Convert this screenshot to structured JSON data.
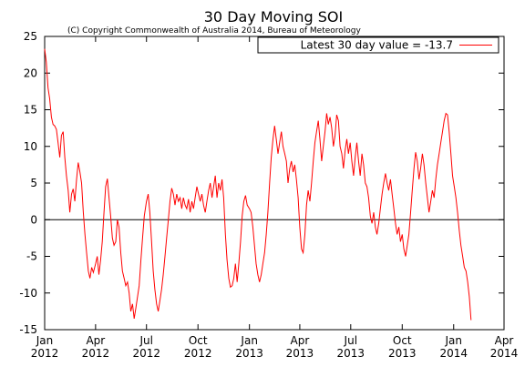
{
  "chart_data": {
    "type": "line",
    "title": "30 Day Moving SOI",
    "subtitle": "(C) Copyright Commonwealth of Australia 2014, Bureau of Meteorology",
    "xlabel": "",
    "ylabel": "",
    "ylim": [
      -15,
      25
    ],
    "yticks": [
      -15,
      -10,
      -5,
      0,
      5,
      10,
      15,
      20,
      25
    ],
    "xlim": [
      "2012-01-01",
      "2014-04-01"
    ],
    "xticks": [
      {
        "date": "2012-01-01",
        "month": "Jan",
        "year": "2012"
      },
      {
        "date": "2012-04-01",
        "month": "Apr",
        "year": "2012"
      },
      {
        "date": "2012-07-01",
        "month": "Jul",
        "year": "2012"
      },
      {
        "date": "2012-10-01",
        "month": "Oct",
        "year": "2012"
      },
      {
        "date": "2013-01-01",
        "month": "Jan",
        "year": "2013"
      },
      {
        "date": "2013-04-01",
        "month": "Apr",
        "year": "2013"
      },
      {
        "date": "2013-07-01",
        "month": "Jul",
        "year": "2013"
      },
      {
        "date": "2013-10-01",
        "month": "Oct",
        "year": "2013"
      },
      {
        "date": "2014-01-01",
        "month": "Jan",
        "year": "2014"
      },
      {
        "date": "2014-04-01",
        "month": "Apr",
        "year": "2014"
      }
    ],
    "zero_line": true,
    "grid": false,
    "legend": {
      "position": "top-right",
      "entry": "Latest 30 day value = -13.7"
    },
    "series": [
      {
        "color": "#ff0000",
        "points": [
          [
            "2012-01-01",
            23.3
          ],
          [
            "2012-01-04",
            21.5
          ],
          [
            "2012-01-07",
            18.0
          ],
          [
            "2012-01-10",
            16.5
          ],
          [
            "2012-01-13",
            14.0
          ],
          [
            "2012-01-16",
            13.0
          ],
          [
            "2012-01-19",
            12.8
          ],
          [
            "2012-01-22",
            12.3
          ],
          [
            "2012-01-25",
            10.5
          ],
          [
            "2012-01-28",
            8.5
          ],
          [
            "2012-01-31",
            11.5
          ],
          [
            "2012-02-03",
            12.0
          ],
          [
            "2012-02-06",
            8.5
          ],
          [
            "2012-02-09",
            6.0
          ],
          [
            "2012-02-12",
            4.0
          ],
          [
            "2012-02-15",
            1.0
          ],
          [
            "2012-02-18",
            3.5
          ],
          [
            "2012-02-21",
            4.2
          ],
          [
            "2012-02-24",
            2.5
          ],
          [
            "2012-02-27",
            5.5
          ],
          [
            "2012-03-01",
            7.8
          ],
          [
            "2012-03-04",
            6.5
          ],
          [
            "2012-03-07",
            5.0
          ],
          [
            "2012-03-10",
            1.0
          ],
          [
            "2012-03-13",
            -2.0
          ],
          [
            "2012-03-16",
            -4.5
          ],
          [
            "2012-03-19",
            -7.0
          ],
          [
            "2012-03-22",
            -8.0
          ],
          [
            "2012-03-25",
            -6.5
          ],
          [
            "2012-03-28",
            -7.2
          ],
          [
            "2012-04-01",
            -6.0
          ],
          [
            "2012-04-04",
            -5.0
          ],
          [
            "2012-04-07",
            -7.5
          ],
          [
            "2012-04-10",
            -5.5
          ],
          [
            "2012-04-13",
            -3.0
          ],
          [
            "2012-04-16",
            1.0
          ],
          [
            "2012-04-19",
            4.5
          ],
          [
            "2012-04-22",
            5.6
          ],
          [
            "2012-04-25",
            3.0
          ],
          [
            "2012-04-28",
            0.5
          ],
          [
            "2012-05-01",
            -2.5
          ],
          [
            "2012-05-04",
            -3.5
          ],
          [
            "2012-05-07",
            -3.0
          ],
          [
            "2012-05-10",
            0.0
          ],
          [
            "2012-05-13",
            -1.0
          ],
          [
            "2012-05-16",
            -4.5
          ],
          [
            "2012-05-19",
            -7.0
          ],
          [
            "2012-05-22",
            -8.0
          ],
          [
            "2012-05-25",
            -9.0
          ],
          [
            "2012-05-28",
            -8.5
          ],
          [
            "2012-05-31",
            -10.0
          ],
          [
            "2012-06-03",
            -12.5
          ],
          [
            "2012-06-06",
            -11.5
          ],
          [
            "2012-06-09",
            -13.5
          ],
          [
            "2012-06-12",
            -12.0
          ],
          [
            "2012-06-15",
            -10.5
          ],
          [
            "2012-06-18",
            -9.0
          ],
          [
            "2012-06-21",
            -5.5
          ],
          [
            "2012-06-24",
            -2.5
          ],
          [
            "2012-06-27",
            0.5
          ],
          [
            "2012-07-01",
            2.5
          ],
          [
            "2012-07-04",
            3.5
          ],
          [
            "2012-07-07",
            1.0
          ],
          [
            "2012-07-10",
            -3.0
          ],
          [
            "2012-07-13",
            -7.0
          ],
          [
            "2012-07-16",
            -9.5
          ],
          [
            "2012-07-19",
            -11.5
          ],
          [
            "2012-07-22",
            -12.5
          ],
          [
            "2012-07-25",
            -11.0
          ],
          [
            "2012-07-28",
            -9.5
          ],
          [
            "2012-07-31",
            -7.5
          ],
          [
            "2012-08-03",
            -5.0
          ],
          [
            "2012-08-06",
            -2.5
          ],
          [
            "2012-08-09",
            0.0
          ],
          [
            "2012-08-12",
            2.5
          ],
          [
            "2012-08-15",
            4.3
          ],
          [
            "2012-08-18",
            3.5
          ],
          [
            "2012-08-21",
            2.0
          ],
          [
            "2012-08-24",
            3.5
          ],
          [
            "2012-08-27",
            2.5
          ],
          [
            "2012-08-30",
            3.0
          ],
          [
            "2012-09-02",
            1.5
          ],
          [
            "2012-09-05",
            3.0
          ],
          [
            "2012-09-08",
            2.0
          ],
          [
            "2012-09-11",
            1.5
          ],
          [
            "2012-09-14",
            2.8
          ],
          [
            "2012-09-17",
            1.0
          ],
          [
            "2012-09-20",
            2.5
          ],
          [
            "2012-09-23",
            1.5
          ],
          [
            "2012-09-26",
            3.0
          ],
          [
            "2012-09-29",
            4.5
          ],
          [
            "2012-10-02",
            3.5
          ],
          [
            "2012-10-05",
            2.5
          ],
          [
            "2012-10-08",
            3.5
          ],
          [
            "2012-10-11",
            2.0
          ],
          [
            "2012-10-14",
            1.0
          ],
          [
            "2012-10-17",
            2.5
          ],
          [
            "2012-10-20",
            4.0
          ],
          [
            "2012-10-23",
            5.0
          ],
          [
            "2012-10-26",
            3.0
          ],
          [
            "2012-10-29",
            4.5
          ],
          [
            "2012-11-01",
            6.0
          ],
          [
            "2012-11-04",
            3.0
          ],
          [
            "2012-11-07",
            5.0
          ],
          [
            "2012-11-10",
            4.0
          ],
          [
            "2012-11-13",
            5.5
          ],
          [
            "2012-11-16",
            3.0
          ],
          [
            "2012-11-19",
            -2.0
          ],
          [
            "2012-11-22",
            -5.5
          ],
          [
            "2012-11-25",
            -8.0
          ],
          [
            "2012-11-28",
            -9.2
          ],
          [
            "2012-12-01",
            -9.0
          ],
          [
            "2012-12-04",
            -8.0
          ],
          [
            "2012-12-07",
            -6.0
          ],
          [
            "2012-12-10",
            -8.5
          ],
          [
            "2012-12-13",
            -6.0
          ],
          [
            "2012-12-16",
            -3.0
          ],
          [
            "2012-12-19",
            0.5
          ],
          [
            "2012-12-22",
            2.5
          ],
          [
            "2012-12-25",
            3.3
          ],
          [
            "2012-12-28",
            2.0
          ],
          [
            "2013-01-01",
            1.5
          ],
          [
            "2013-01-04",
            1.0
          ],
          [
            "2013-01-07",
            -1.0
          ],
          [
            "2013-01-10",
            -3.5
          ],
          [
            "2013-01-13",
            -6.0
          ],
          [
            "2013-01-16",
            -7.5
          ],
          [
            "2013-01-19",
            -8.5
          ],
          [
            "2013-01-22",
            -7.5
          ],
          [
            "2013-01-25",
            -6.0
          ],
          [
            "2013-01-28",
            -4.5
          ],
          [
            "2013-01-31",
            -2.0
          ],
          [
            "2013-02-03",
            1.0
          ],
          [
            "2013-02-06",
            5.0
          ],
          [
            "2013-02-09",
            8.5
          ],
          [
            "2013-02-12",
            11.0
          ],
          [
            "2013-02-15",
            12.8
          ],
          [
            "2013-02-18",
            11.0
          ],
          [
            "2013-02-21",
            9.0
          ],
          [
            "2013-02-24",
            10.5
          ],
          [
            "2013-02-27",
            12.0
          ],
          [
            "2013-03-02",
            10.0
          ],
          [
            "2013-03-05",
            9.0
          ],
          [
            "2013-03-08",
            8.0
          ],
          [
            "2013-03-11",
            5.0
          ],
          [
            "2013-03-14",
            7.0
          ],
          [
            "2013-03-17",
            8.0
          ],
          [
            "2013-03-20",
            6.5
          ],
          [
            "2013-03-23",
            7.5
          ],
          [
            "2013-03-26",
            5.5
          ],
          [
            "2013-03-29",
            3.0
          ],
          [
            "2013-04-01",
            -1.0
          ],
          [
            "2013-04-04",
            -4.0
          ],
          [
            "2013-04-07",
            -4.5
          ],
          [
            "2013-04-10",
            -2.0
          ],
          [
            "2013-04-13",
            2.0
          ],
          [
            "2013-04-16",
            4.0
          ],
          [
            "2013-04-19",
            2.5
          ],
          [
            "2013-04-22",
            5.0
          ],
          [
            "2013-04-25",
            8.0
          ],
          [
            "2013-04-28",
            10.5
          ],
          [
            "2013-05-01",
            12.0
          ],
          [
            "2013-05-04",
            13.5
          ],
          [
            "2013-05-07",
            11.0
          ],
          [
            "2013-05-10",
            8.0
          ],
          [
            "2013-05-13",
            10.0
          ],
          [
            "2013-05-16",
            12.0
          ],
          [
            "2013-05-19",
            14.5
          ],
          [
            "2013-05-22",
            13.0
          ],
          [
            "2013-05-25",
            14.0
          ],
          [
            "2013-05-28",
            12.5
          ],
          [
            "2013-05-31",
            10.0
          ],
          [
            "2013-06-03",
            11.5
          ],
          [
            "2013-06-06",
            14.3
          ],
          [
            "2013-06-09",
            13.5
          ],
          [
            "2013-06-12",
            10.0
          ],
          [
            "2013-06-15",
            9.0
          ],
          [
            "2013-06-18",
            7.0
          ],
          [
            "2013-06-21",
            9.5
          ],
          [
            "2013-06-24",
            11.0
          ],
          [
            "2013-06-27",
            9.0
          ],
          [
            "2013-06-30",
            10.5
          ],
          [
            "2013-07-03",
            8.0
          ],
          [
            "2013-07-06",
            6.0
          ],
          [
            "2013-07-09",
            8.5
          ],
          [
            "2013-07-12",
            10.5
          ],
          [
            "2013-07-15",
            8.0
          ],
          [
            "2013-07-18",
            6.0
          ],
          [
            "2013-07-21",
            9.0
          ],
          [
            "2013-07-24",
            7.5
          ],
          [
            "2013-07-27",
            5.0
          ],
          [
            "2013-07-30",
            4.5
          ],
          [
            "2013-08-02",
            3.0
          ],
          [
            "2013-08-05",
            0.5
          ],
          [
            "2013-08-08",
            -0.5
          ],
          [
            "2013-08-11",
            1.0
          ],
          [
            "2013-08-14",
            -1.0
          ],
          [
            "2013-08-17",
            -2.0
          ],
          [
            "2013-08-20",
            -0.5
          ],
          [
            "2013-08-23",
            1.5
          ],
          [
            "2013-08-26",
            3.5
          ],
          [
            "2013-08-29",
            5.0
          ],
          [
            "2013-09-01",
            6.3
          ],
          [
            "2013-09-04",
            5.0
          ],
          [
            "2013-09-07",
            4.0
          ],
          [
            "2013-09-10",
            5.5
          ],
          [
            "2013-09-13",
            3.5
          ],
          [
            "2013-09-16",
            1.5
          ],
          [
            "2013-09-19",
            -0.5
          ],
          [
            "2013-09-22",
            -2.0
          ],
          [
            "2013-09-25",
            -1.0
          ],
          [
            "2013-09-28",
            -3.0
          ],
          [
            "2013-10-01",
            -2.0
          ],
          [
            "2013-10-04",
            -4.0
          ],
          [
            "2013-10-07",
            -5.0
          ],
          [
            "2013-10-10",
            -3.5
          ],
          [
            "2013-10-13",
            -2.0
          ],
          [
            "2013-10-16",
            1.0
          ],
          [
            "2013-10-19",
            4.0
          ],
          [
            "2013-10-22",
            7.0
          ],
          [
            "2013-10-25",
            9.2
          ],
          [
            "2013-10-28",
            8.0
          ],
          [
            "2013-10-31",
            5.5
          ],
          [
            "2013-11-03",
            7.0
          ],
          [
            "2013-11-06",
            9.0
          ],
          [
            "2013-11-09",
            7.5
          ],
          [
            "2013-11-12",
            5.0
          ],
          [
            "2013-11-15",
            3.0
          ],
          [
            "2013-11-18",
            1.0
          ],
          [
            "2013-11-21",
            2.5
          ],
          [
            "2013-11-24",
            4.0
          ],
          [
            "2013-11-27",
            3.0
          ],
          [
            "2013-11-30",
            5.5
          ],
          [
            "2013-12-03",
            7.5
          ],
          [
            "2013-12-06",
            9.0
          ],
          [
            "2013-12-09",
            10.5
          ],
          [
            "2013-12-12",
            12.0
          ],
          [
            "2013-12-15",
            13.5
          ],
          [
            "2013-12-18",
            14.5
          ],
          [
            "2013-12-21",
            14.3
          ],
          [
            "2013-12-24",
            12.0
          ],
          [
            "2013-12-27",
            9.0
          ],
          [
            "2013-12-30",
            6.0
          ],
          [
            "2014-01-02",
            4.5
          ],
          [
            "2014-01-05",
            3.0
          ],
          [
            "2014-01-08",
            1.0
          ],
          [
            "2014-01-11",
            -1.5
          ],
          [
            "2014-01-14",
            -3.5
          ],
          [
            "2014-01-17",
            -5.0
          ],
          [
            "2014-01-20",
            -6.5
          ],
          [
            "2014-01-23",
            -7.0
          ],
          [
            "2014-01-26",
            -8.5
          ],
          [
            "2014-01-29",
            -10.5
          ],
          [
            "2014-02-01",
            -13.7
          ]
        ]
      }
    ]
  }
}
